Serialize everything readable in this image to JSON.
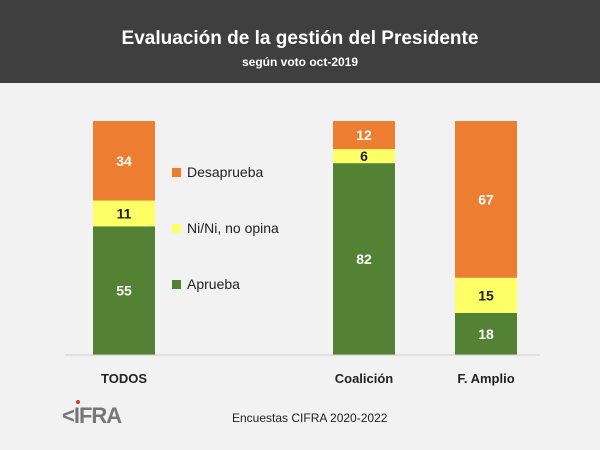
{
  "header": {
    "title": "Evaluación de la gestión del Presidente",
    "subtitle": "según voto oct-2019"
  },
  "chart_data": {
    "type": "bar",
    "stacked": true,
    "title": "Evaluación de la gestión del Presidente",
    "subtitle": "según voto oct-2019",
    "categories": [
      "TODOS",
      "Coalición",
      "F. Amplio"
    ],
    "series": [
      {
        "name": "Aprueba",
        "color": "#548235",
        "values": [
          55,
          82,
          18
        ]
      },
      {
        "name": "Ni/Ni, no opina",
        "color": "#ffff66",
        "values": [
          11,
          6,
          15
        ]
      },
      {
        "name": "Desaprueba",
        "color": "#ed7d31",
        "values": [
          34,
          12,
          67
        ]
      }
    ],
    "ylim": [
      0,
      100
    ],
    "legend": "between-bars"
  },
  "footer": {
    "source": "Encuestas CIFRA 2020-2022",
    "logo": "CIFRA"
  }
}
